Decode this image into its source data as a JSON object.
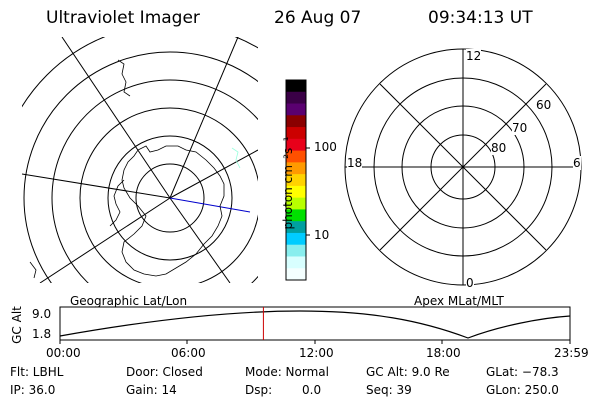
{
  "header": {
    "instrument": "Ultraviolet Imager",
    "date": "26 Aug 07",
    "time": "09:34:13 UT"
  },
  "colorbar": {
    "unit_label": "photon cm⁻²s⁻¹",
    "tick_labels": [
      "100",
      "10"
    ],
    "colors": [
      "#000000",
      "#3a0046",
      "#5a0070",
      "#8a0000",
      "#cc0000",
      "#e8001a",
      "#ff5000",
      "#ff9a00",
      "#ffd200",
      "#ffff00",
      "#b8ff00",
      "#00e000",
      "#00a0a0",
      "#00ccff",
      "#88eeee",
      "#d8ffff",
      "#f4ffff"
    ]
  },
  "geo_map": {
    "caption": "Geographic Lat/Lon"
  },
  "apex_map": {
    "caption": "Apex MLat/MLT",
    "mlt_labels": {
      "top": "12",
      "left": "18",
      "right": "6",
      "bottom": "0"
    },
    "mlat_labels": [
      "60",
      "70",
      "80"
    ]
  },
  "timeline": {
    "axis_label": "GC Alt",
    "y_ticks": [
      "9.0",
      "1.8"
    ],
    "x_ticks": [
      "00:00",
      "06:00",
      "12:00",
      "18:00",
      "23:59"
    ],
    "marker_time": "09:34",
    "marker_color": "#cc0000"
  },
  "status": {
    "flt": "Flt: LBHL",
    "ip": "IP: 36.0",
    "door": "Door: Closed",
    "gain": "Gain: 14",
    "mode": "Mode: Normal",
    "dsp_label": "Dsp:",
    "dsp_value": "0.0",
    "gc_alt": "GC Alt: 9.0 Re",
    "seq": "Seq: 39",
    "glat": "GLat: −78.3",
    "glon": "GLon: 250.0"
  }
}
